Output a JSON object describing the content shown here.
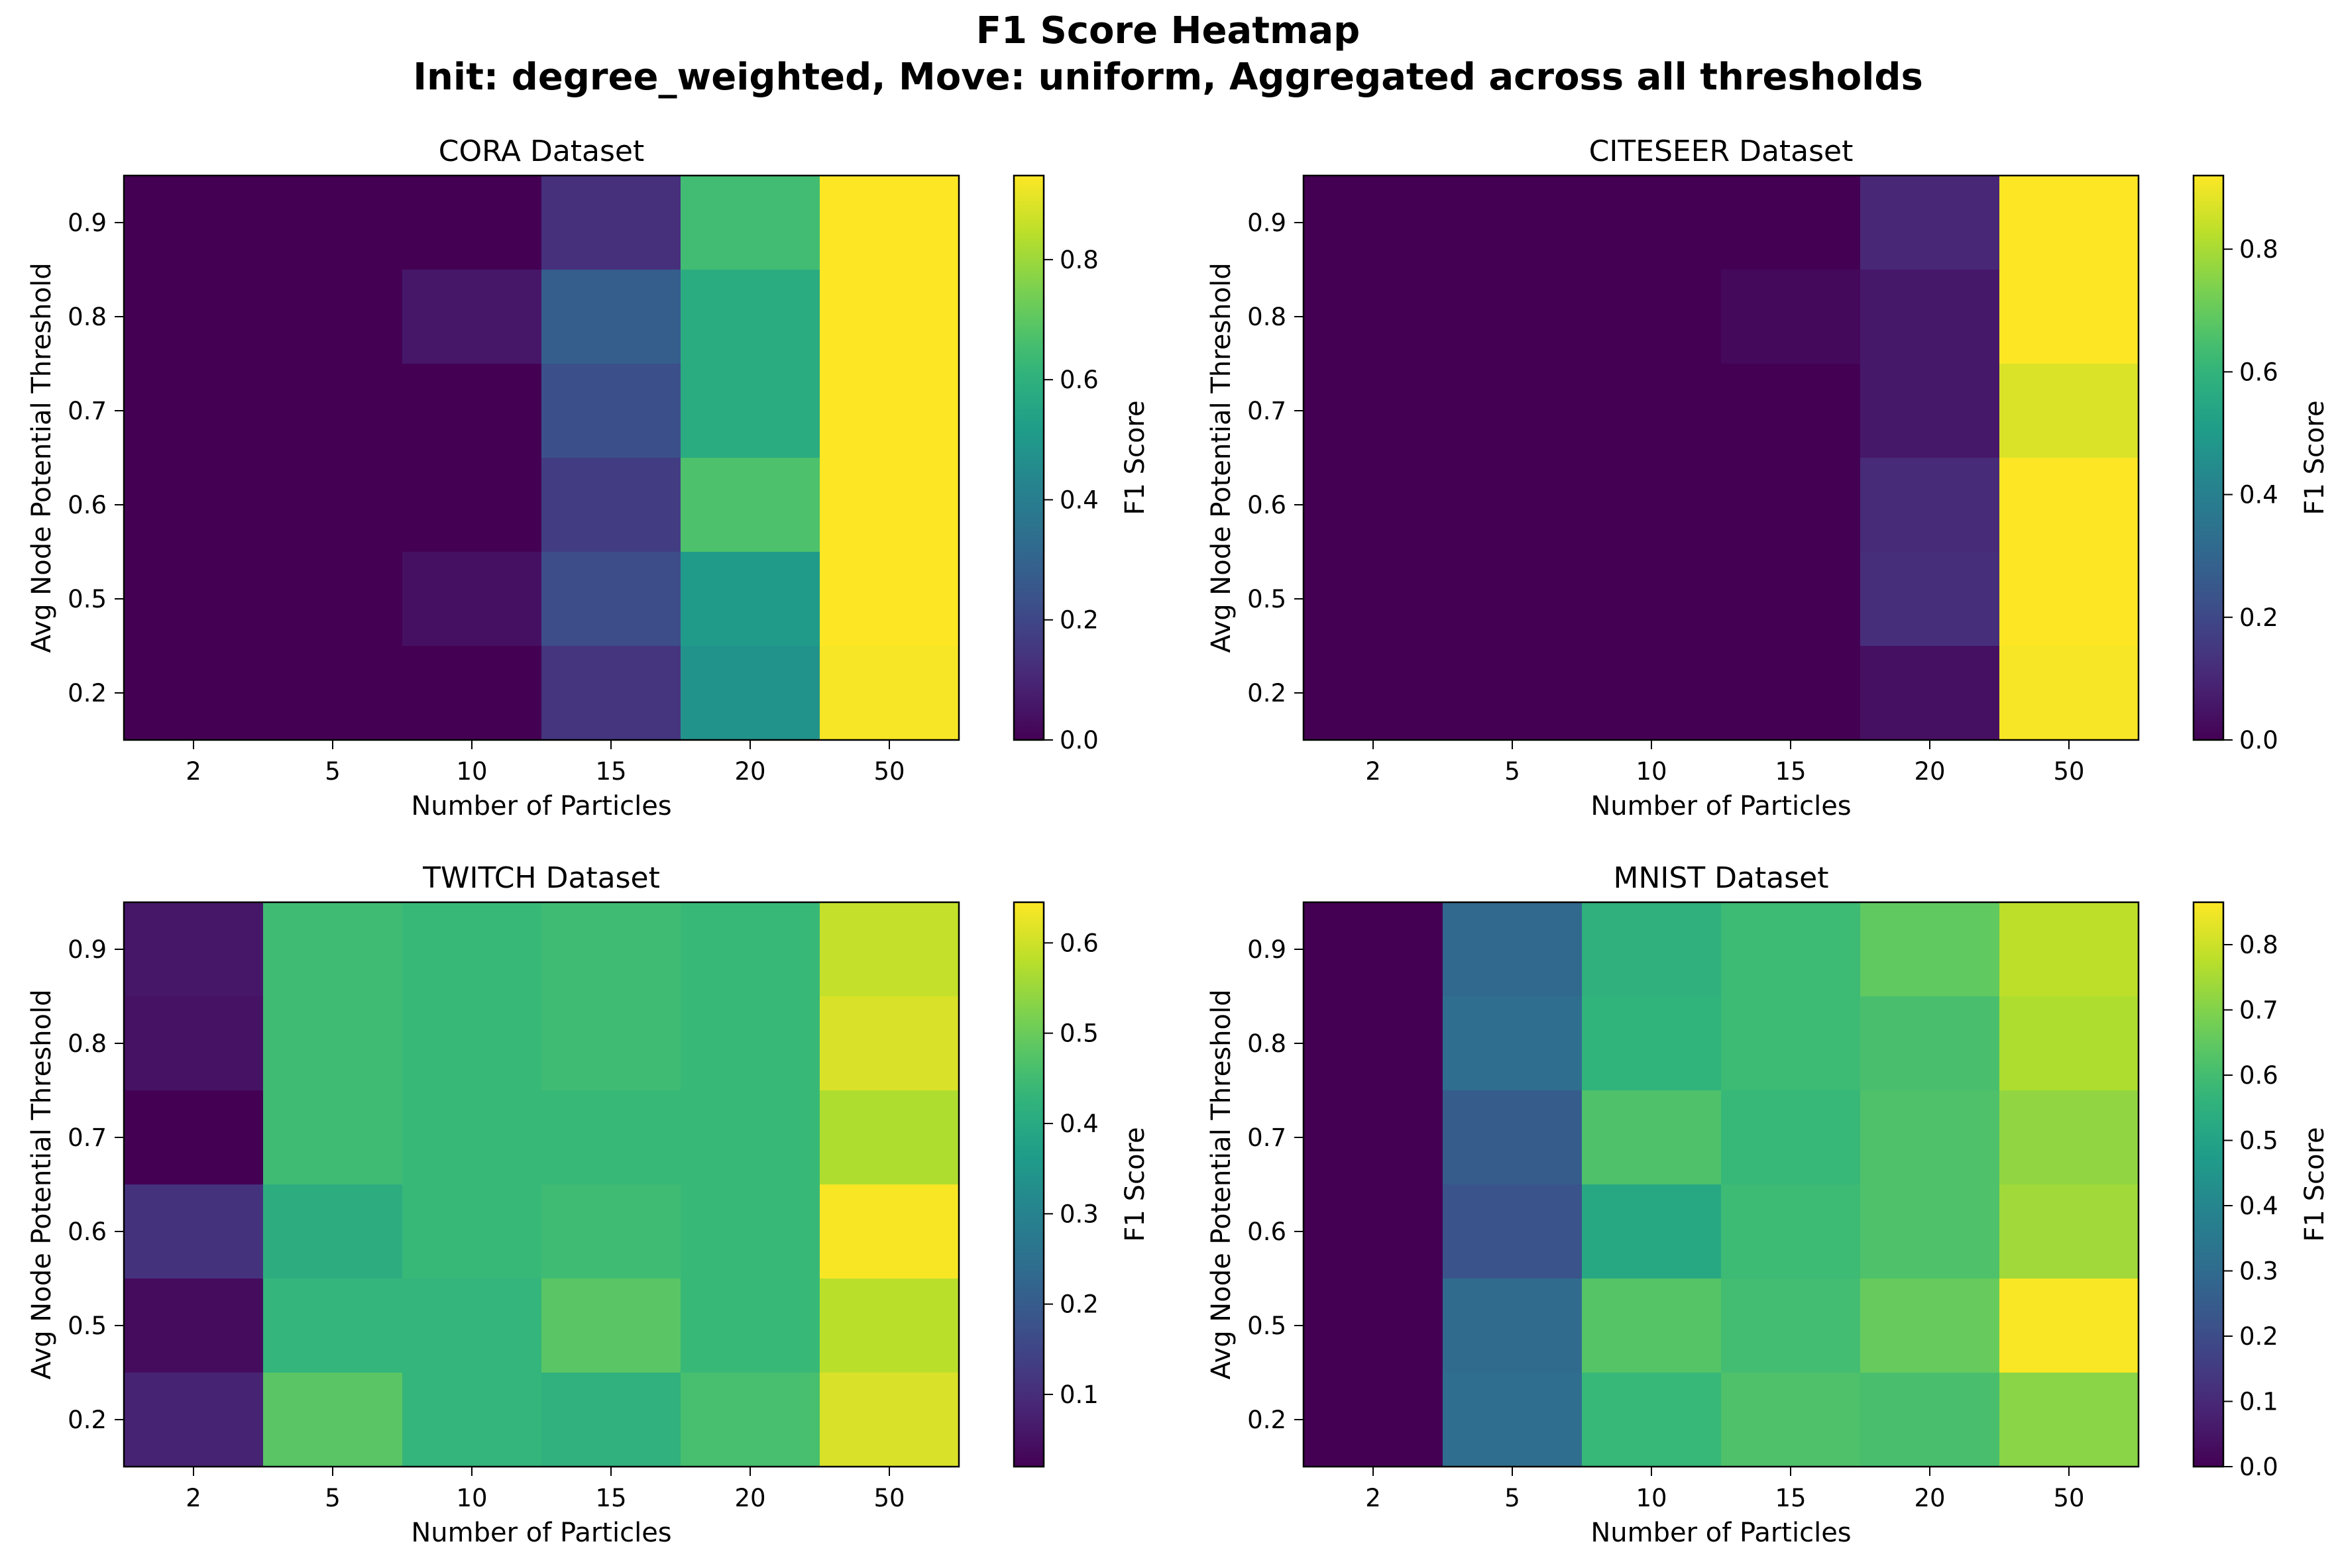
{
  "figure": {
    "title_line1": "F1 Score Heatmap",
    "title_line2": "Init: degree_weighted, Move: uniform, Aggregated across all thresholds"
  },
  "colormap": {
    "name": "viridis",
    "stops": [
      "#440154",
      "#482878",
      "#3e4a89",
      "#31688e",
      "#26828e",
      "#1f9e89",
      "#35b779",
      "#6ece58",
      "#b5de2b",
      "#fde725"
    ]
  },
  "chart_data": [
    {
      "type": "heatmap",
      "title": "CORA Dataset",
      "xlabel": "Number of Particles",
      "ylabel": "Avg Node Potential Threshold",
      "colorbar_label": "F1 Score",
      "x_categories": [
        "2",
        "5",
        "10",
        "15",
        "20",
        "50"
      ],
      "y_categories": [
        "0.9",
        "0.8",
        "0.7",
        "0.6",
        "0.5",
        "0.2"
      ],
      "values": [
        [
          0.0,
          0.0,
          0.0,
          0.13,
          0.65,
          0.94
        ],
        [
          0.0,
          0.0,
          0.06,
          0.28,
          0.58,
          0.94
        ],
        [
          0.0,
          0.0,
          0.0,
          0.23,
          0.58,
          0.94
        ],
        [
          0.0,
          0.0,
          0.0,
          0.17,
          0.67,
          0.94
        ],
        [
          0.0,
          0.0,
          0.04,
          0.22,
          0.51,
          0.94
        ],
        [
          0.0,
          0.0,
          0.0,
          0.14,
          0.48,
          0.93
        ]
      ],
      "vmin": 0.0,
      "vmax": 0.94,
      "colorbar_ticks": [
        "0.0",
        "0.2",
        "0.4",
        "0.6",
        "0.8"
      ]
    },
    {
      "type": "heatmap",
      "title": "CITESEER Dataset",
      "xlabel": "Number of Particles",
      "ylabel": "Avg Node Potential Threshold",
      "colorbar_label": "F1 Score",
      "x_categories": [
        "2",
        "5",
        "10",
        "15",
        "20",
        "50"
      ],
      "y_categories": [
        "0.9",
        "0.8",
        "0.7",
        "0.6",
        "0.5",
        "0.2"
      ],
      "values": [
        [
          0.0,
          0.0,
          0.0,
          0.0,
          0.1,
          0.92
        ],
        [
          0.0,
          0.0,
          0.0,
          0.02,
          0.06,
          0.92
        ],
        [
          0.0,
          0.0,
          0.0,
          0.0,
          0.06,
          0.87
        ],
        [
          0.0,
          0.0,
          0.0,
          0.0,
          0.11,
          0.92
        ],
        [
          0.0,
          0.0,
          0.0,
          0.0,
          0.12,
          0.92
        ],
        [
          0.0,
          0.0,
          0.0,
          0.0,
          0.04,
          0.91
        ]
      ],
      "vmin": 0.0,
      "vmax": 0.92,
      "colorbar_ticks": [
        "0.0",
        "0.2",
        "0.4",
        "0.6",
        "0.8"
      ]
    },
    {
      "type": "heatmap",
      "title": "TWITCH Dataset",
      "xlabel": "Number of Particles",
      "ylabel": "Avg Node Potential Threshold",
      "colorbar_label": "F1 Score",
      "x_categories": [
        "2",
        "5",
        "10",
        "15",
        "20",
        "50"
      ],
      "y_categories": [
        "0.9",
        "0.8",
        "0.7",
        "0.6",
        "0.5",
        "0.2"
      ],
      "values": [
        [
          0.06,
          0.45,
          0.44,
          0.45,
          0.44,
          0.59
        ],
        [
          0.05,
          0.45,
          0.44,
          0.45,
          0.44,
          0.61
        ],
        [
          0.02,
          0.45,
          0.44,
          0.44,
          0.44,
          0.57
        ],
        [
          0.11,
          0.41,
          0.44,
          0.45,
          0.44,
          0.64
        ],
        [
          0.04,
          0.43,
          0.43,
          0.48,
          0.44,
          0.58
        ],
        [
          0.08,
          0.48,
          0.43,
          0.42,
          0.46,
          0.61
        ]
      ],
      "vmin": 0.02,
      "vmax": 0.645,
      "colorbar_ticks": [
        "0.1",
        "0.2",
        "0.3",
        "0.4",
        "0.5",
        "0.6"
      ]
    },
    {
      "type": "heatmap",
      "title": "MNIST Dataset",
      "xlabel": "Number of Particles",
      "ylabel": "Avg Node Potential Threshold",
      "colorbar_label": "F1 Score",
      "x_categories": [
        "2",
        "5",
        "10",
        "15",
        "20",
        "50"
      ],
      "y_categories": [
        "0.9",
        "0.8",
        "0.7",
        "0.6",
        "0.5",
        "0.2"
      ],
      "values": [
        [
          0.0,
          0.29,
          0.55,
          0.59,
          0.65,
          0.78
        ],
        [
          0.0,
          0.31,
          0.56,
          0.59,
          0.61,
          0.76
        ],
        [
          0.0,
          0.25,
          0.62,
          0.58,
          0.62,
          0.72
        ],
        [
          0.0,
          0.22,
          0.52,
          0.59,
          0.62,
          0.74
        ],
        [
          0.0,
          0.3,
          0.63,
          0.6,
          0.66,
          0.86
        ],
        [
          0.0,
          0.31,
          0.58,
          0.62,
          0.61,
          0.71
        ]
      ],
      "vmin": 0.0,
      "vmax": 0.865,
      "colorbar_ticks": [
        "0.0",
        "0.1",
        "0.2",
        "0.3",
        "0.4",
        "0.5",
        "0.6",
        "0.7",
        "0.8"
      ]
    }
  ]
}
